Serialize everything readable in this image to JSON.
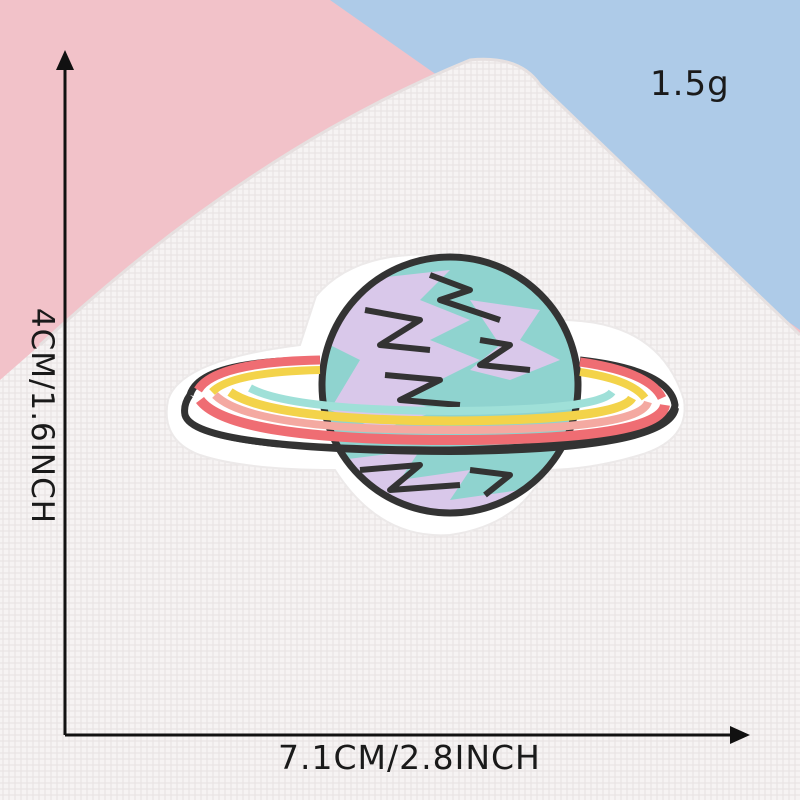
{
  "labels": {
    "weight": "1.5g",
    "width": "7.1CM/2.8INCH",
    "height": "4CM/1.6INCH"
  },
  "colors": {
    "pink_background": "#f2c2c9",
    "blue_background": "#aecbe8",
    "canvas_cloth": "#f6f3f3",
    "patch_border": "#ffffff",
    "planet_teal": "#8fd3cf",
    "planet_lavender": "#d9c8ea",
    "outline": "#333333",
    "ring_red": "#ef6d73",
    "ring_pink": "#f4a9a1",
    "ring_yellow": "#f3d34a",
    "ring_mint": "#9fe0d8",
    "arrow": "#111111"
  }
}
